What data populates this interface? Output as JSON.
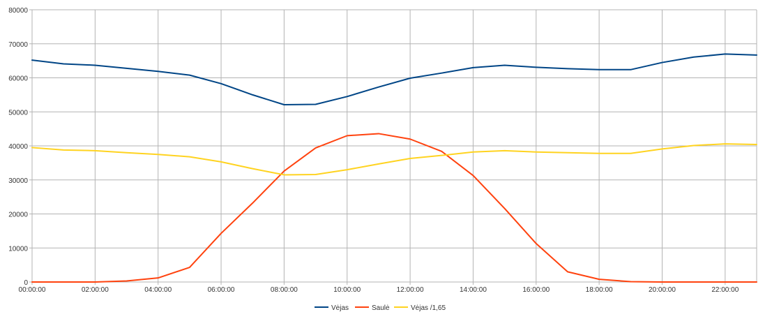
{
  "chart_data": {
    "type": "line",
    "title": "",
    "xlabel": "",
    "ylabel": "",
    "ylim": [
      0,
      80000
    ],
    "yticks": [
      0,
      10000,
      20000,
      30000,
      40000,
      50000,
      60000,
      70000,
      80000
    ],
    "ytick_labels": [
      "0",
      "10000",
      "20000",
      "30000",
      "40000",
      "50000",
      "60000",
      "70000",
      "80000"
    ],
    "categories": [
      "00:00:00",
      "01:00:00",
      "02:00:00",
      "03:00:00",
      "04:00:00",
      "05:00:00",
      "06:00:00",
      "07:00:00",
      "08:00:00",
      "09:00:00",
      "10:00:00",
      "11:00:00",
      "12:00:00",
      "13:00:00",
      "14:00:00",
      "15:00:00",
      "16:00:00",
      "17:00:00",
      "18:00:00",
      "19:00:00",
      "20:00:00",
      "21:00:00",
      "22:00:00",
      "23:00:00"
    ],
    "xtick_labels": [
      "00:00:00",
      "02:00:00",
      "04:00:00",
      "06:00:00",
      "08:00:00",
      "10:00:00",
      "12:00:00",
      "14:00:00",
      "16:00:00",
      "18:00:00",
      "20:00:00",
      "22:00:00"
    ],
    "grid": true,
    "legend_position": "bottom",
    "series": [
      {
        "name": "Vėjas",
        "color": "#004586",
        "values": [
          65200,
          64100,
          63700,
          62800,
          61900,
          60800,
          58300,
          55000,
          52100,
          52200,
          54500,
          57300,
          59900,
          61400,
          63000,
          63700,
          63100,
          62700,
          62400,
          62400,
          64500,
          66100,
          67000,
          66700
        ]
      },
      {
        "name": "Saulė",
        "color": "#ff420e",
        "values": [
          0,
          0,
          0,
          300,
          1200,
          4300,
          14300,
          23200,
          32600,
          39400,
          43000,
          43600,
          42000,
          38400,
          31300,
          21600,
          11300,
          3000,
          800,
          100,
          0,
          0,
          0,
          0
        ]
      },
      {
        "name": "Vėjas /1,65",
        "color": "#ffd320",
        "values": [
          39500,
          38800,
          38600,
          38000,
          37500,
          36800,
          35300,
          33300,
          31500,
          31600,
          33000,
          34700,
          36300,
          37200,
          38200,
          38600,
          38200,
          38000,
          37800,
          37800,
          39100,
          40100,
          40600,
          40400
        ]
      }
    ]
  }
}
